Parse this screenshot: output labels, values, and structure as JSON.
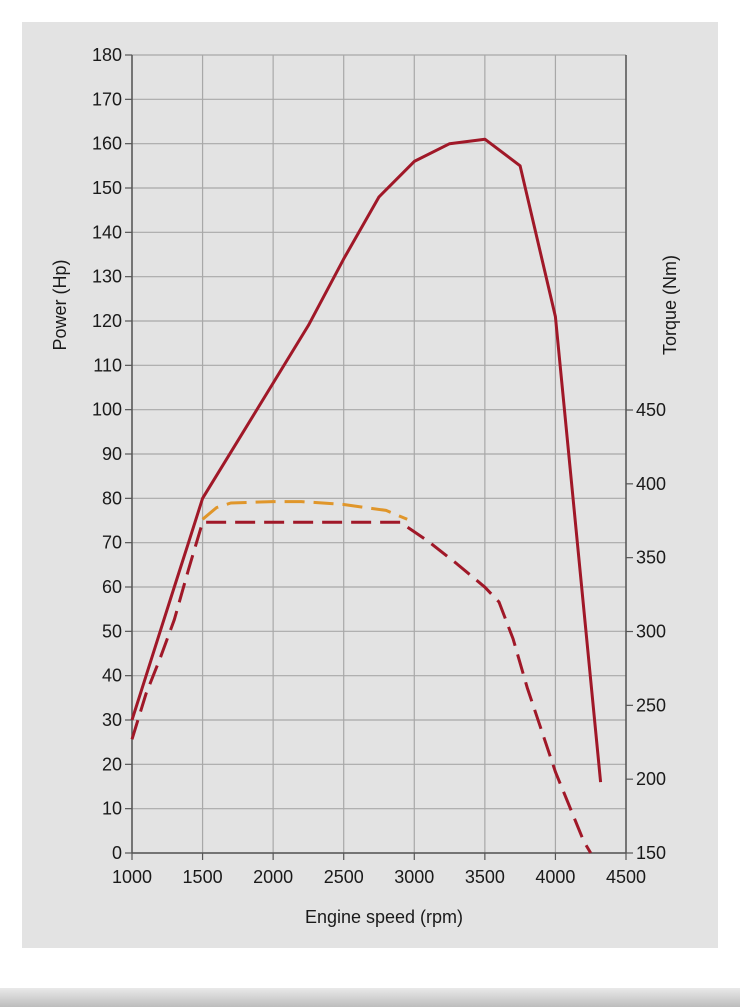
{
  "chart_data": {
    "type": "line",
    "xlabel": "Engine speed (rpm)",
    "ylabel": "Power (Hp)",
    "y2label": "Torque (Nm)",
    "xlim": [
      1000,
      4500
    ],
    "ylim": [
      0,
      180
    ],
    "y2lim": [
      150,
      450
    ],
    "x_ticks": [
      "1000",
      "1500",
      "2000",
      "2500",
      "3000",
      "3500",
      "4000",
      "4500"
    ],
    "y_ticks": [
      "0",
      "10",
      "20",
      "30",
      "40",
      "50",
      "60",
      "70",
      "80",
      "90",
      "100",
      "110",
      "120",
      "130",
      "140",
      "150",
      "160",
      "170",
      "180"
    ],
    "y2_ticks": [
      "150",
      "200",
      "250",
      "300",
      "350",
      "400",
      "450"
    ],
    "grid": true,
    "series": [
      {
        "axis": "left",
        "style": "solid",
        "color": "#a01828",
        "x": [
          1000,
          1100,
          1200,
          1300,
          1400,
          1500,
          1750,
          2000,
          2250,
          2500,
          2750,
          3000,
          3250,
          3500,
          3750,
          4000,
          4320
        ],
        "values": [
          30,
          40,
          50,
          60,
          70,
          80,
          93,
          106,
          119,
          134,
          148,
          156,
          160,
          161,
          155,
          121,
          16
        ]
      },
      {
        "axis": "right",
        "style": "dashed",
        "color": "#a01828",
        "x": [
          1000,
          1100,
          1200,
          1300,
          1400,
          1500,
          1800,
          2100,
          2400,
          2700,
          2900,
          3100,
          3300,
          3500,
          3600,
          3700,
          3800,
          4000,
          4200,
          4250
        ],
        "values": [
          227,
          258,
          282,
          308,
          342,
          374,
          374,
          374,
          374,
          374,
          374,
          361,
          346,
          330,
          320,
          295,
          262,
          205,
          158,
          150
        ]
      },
      {
        "axis": "right",
        "style": "dashed",
        "color": "#e0962a",
        "x": [
          1500,
          1600,
          1700,
          2000,
          2200,
          2500,
          2800,
          2950
        ],
        "values": [
          376,
          384,
          387,
          388,
          388,
          386,
          382,
          376
        ]
      }
    ]
  }
}
